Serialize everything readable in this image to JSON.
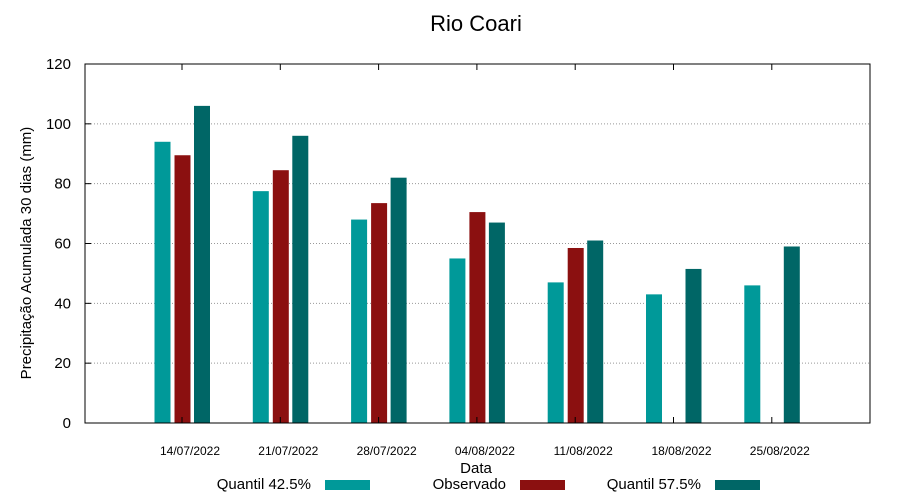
{
  "chart_data": {
    "type": "bar",
    "title": "Rio Coari",
    "xlabel": "Data",
    "ylabel": "Precipitação Acumulada 30 dias (mm)",
    "ylim": [
      0,
      120
    ],
    "yticks": [
      0,
      20,
      40,
      60,
      80,
      100,
      120
    ],
    "grid": true,
    "legend_position": "bottom",
    "categories": [
      "14/07/2022",
      "21/07/2022",
      "28/07/2022",
      "04/08/2022",
      "11/08/2022",
      "18/08/2022",
      "25/08/2022"
    ],
    "series": [
      {
        "name": "Quantil 42.5%",
        "color": "#009999",
        "values": [
          94,
          77.5,
          68,
          55,
          47,
          43,
          46
        ]
      },
      {
        "name": "Observado",
        "color": "#8b1010",
        "values": [
          89.5,
          84.5,
          73.5,
          70.5,
          58.5,
          null,
          null
        ]
      },
      {
        "name": "Quantil 57.5%",
        "color": "#006666",
        "values": [
          106,
          96,
          82,
          67,
          61,
          51.5,
          59
        ]
      }
    ]
  }
}
